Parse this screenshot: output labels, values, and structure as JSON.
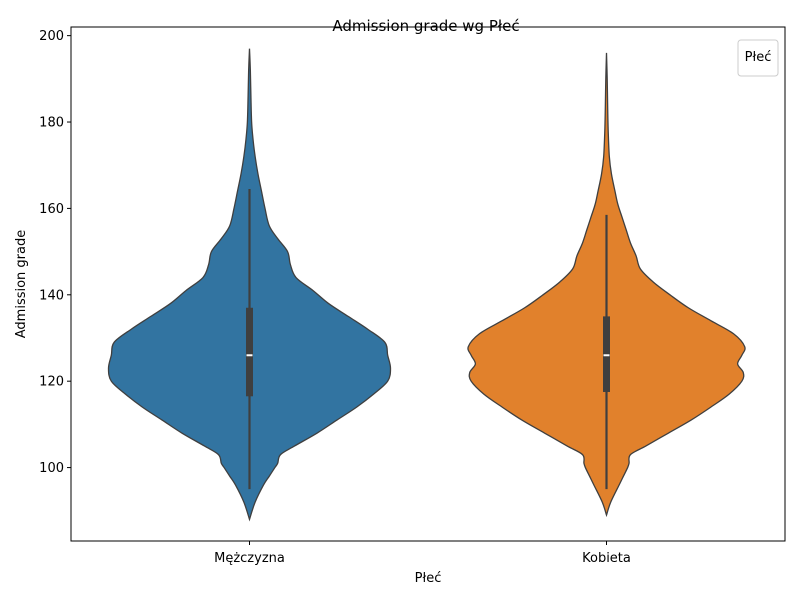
{
  "chart_data": {
    "type": "violin",
    "title": "Admission grade wg Płeć",
    "xlabel": "Płeć",
    "ylabel": "Admission grade",
    "ylim": [
      83,
      202
    ],
    "yticks": [
      100,
      120,
      140,
      160,
      180,
      200
    ],
    "categories": [
      "Mężczyzna",
      "Kobieta"
    ],
    "legend": {
      "title": "Płeć",
      "placement": "top-right",
      "entries": []
    },
    "grid": false,
    "series": [
      {
        "category": "Mężczyzna",
        "color": "#3274a1",
        "min": 88,
        "max": 197,
        "whisker_low": 95,
        "q1": 116.5,
        "median": 126,
        "q3": 137,
        "whisker_high": 164.5,
        "density": [
          [
            88,
            0.0
          ],
          [
            92,
            0.04
          ],
          [
            96,
            0.1
          ],
          [
            98,
            0.14
          ],
          [
            100,
            0.18
          ],
          [
            101,
            0.2
          ],
          [
            103,
            0.22
          ],
          [
            105,
            0.32
          ],
          [
            108,
            0.48
          ],
          [
            111,
            0.62
          ],
          [
            114,
            0.76
          ],
          [
            117,
            0.88
          ],
          [
            120,
            0.98
          ],
          [
            123,
            1.0
          ],
          [
            126,
            0.98
          ],
          [
            129,
            0.96
          ],
          [
            132,
            0.84
          ],
          [
            135,
            0.7
          ],
          [
            138,
            0.56
          ],
          [
            141,
            0.45
          ],
          [
            144,
            0.33
          ],
          [
            147,
            0.29
          ],
          [
            150,
            0.27
          ],
          [
            153,
            0.2
          ],
          [
            156,
            0.14
          ],
          [
            160,
            0.11
          ],
          [
            164,
            0.085
          ],
          [
            168,
            0.06
          ],
          [
            172,
            0.04
          ],
          [
            176,
            0.025
          ],
          [
            180,
            0.015
          ],
          [
            186,
            0.01
          ],
          [
            192,
            0.006
          ],
          [
            197,
            0.0
          ]
        ]
      },
      {
        "category": "Kobieta",
        "color": "#e1812c",
        "min": 89,
        "max": 196,
        "whisker_low": 95,
        "q1": 117.5,
        "median": 126,
        "q3": 135,
        "whisker_high": 158.5,
        "density": [
          [
            89,
            0.0
          ],
          [
            92,
            0.03
          ],
          [
            96,
            0.09
          ],
          [
            98,
            0.12
          ],
          [
            100,
            0.15
          ],
          [
            101,
            0.16
          ],
          [
            103,
            0.17
          ],
          [
            105,
            0.28
          ],
          [
            108,
            0.44
          ],
          [
            111,
            0.6
          ],
          [
            114,
            0.74
          ],
          [
            117,
            0.87
          ],
          [
            120,
            0.96
          ],
          [
            122,
            0.97
          ],
          [
            124,
            0.93
          ],
          [
            126,
            0.96
          ],
          [
            128,
            0.98
          ],
          [
            131,
            0.9
          ],
          [
            134,
            0.74
          ],
          [
            137,
            0.58
          ],
          [
            140,
            0.45
          ],
          [
            143,
            0.33
          ],
          [
            146,
            0.24
          ],
          [
            149,
            0.21
          ],
          [
            152,
            0.17
          ],
          [
            155,
            0.14
          ],
          [
            158,
            0.11
          ],
          [
            161,
            0.08
          ],
          [
            164,
            0.06
          ],
          [
            168,
            0.035
          ],
          [
            172,
            0.02
          ],
          [
            178,
            0.012
          ],
          [
            184,
            0.008
          ],
          [
            190,
            0.005
          ],
          [
            196,
            0.0
          ]
        ]
      }
    ]
  }
}
